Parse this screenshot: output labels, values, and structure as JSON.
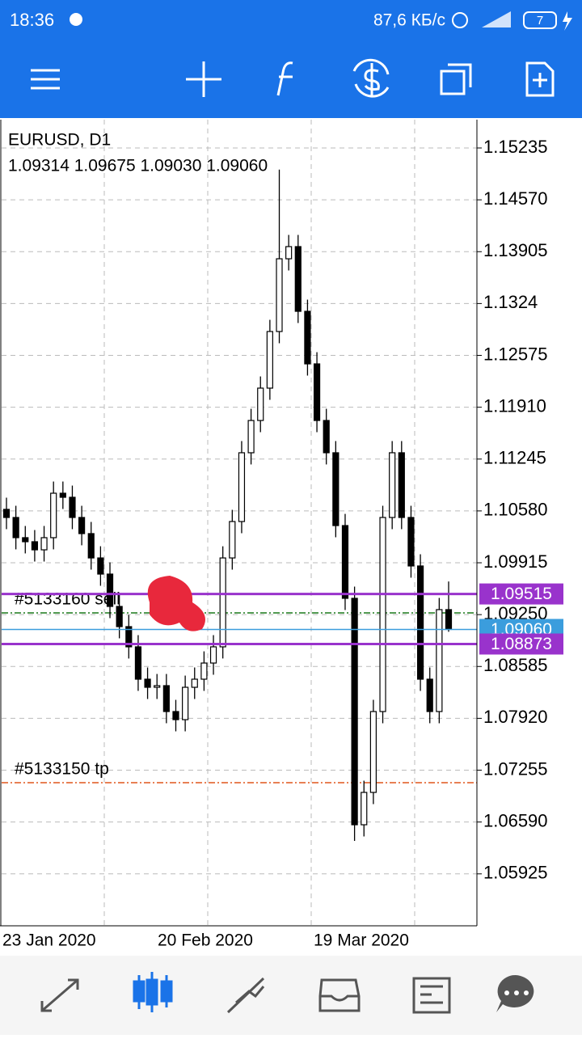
{
  "status_bar": {
    "time": "18:36",
    "speed": "87,6 КБ/с",
    "battery": "7"
  },
  "chart_data": {
    "type": "candlestick",
    "symbol": "EURUSD, D1",
    "ohlc_text": "1.09314 1.09675 1.09030 1.09060",
    "open": [
      1.106,
      1.10496,
      1.10237,
      1.10185,
      1.10081,
      1.10237,
      1.10807,
      1.10755,
      1.10496,
      1.10289,
      1.09977,
      1.0977,
      1.09355,
      1.09096,
      1.08837,
      1.08422,
      1.08318,
      1.08339,
      1.08007,
      1.07903,
      1.08318,
      1.08422,
      1.08629,
      1.08837,
      1.09977,
      1.10444,
      1.11326,
      1.1174,
      1.12155,
      1.12881,
      1.13814,
      1.1397,
      1.1314,
      1.12466,
      1.1174,
      1.11326,
      1.10392,
      1.09459,
      1.06555,
      1.0697,
      1.08007,
      1.10496,
      1.11326,
      1.10496,
      1.09874,
      1.08422,
      1.08007,
      1.09314
    ],
    "high": [
      1.1075,
      1.10646,
      1.10387,
      1.10335,
      1.10387,
      1.10957,
      1.10957,
      1.10905,
      1.10646,
      1.10439,
      1.10127,
      1.0992,
      1.09505,
      1.09246,
      1.08987,
      1.08572,
      1.08489,
      1.08489,
      1.08157,
      1.08468,
      1.08572,
      1.08779,
      1.08987,
      1.10127,
      1.10594,
      1.11476,
      1.1189,
      1.12305,
      1.13031,
      1.14957,
      1.1412,
      1.1412,
      1.1329,
      1.12616,
      1.1189,
      1.11476,
      1.10542,
      1.09609,
      1.0712,
      1.08157,
      1.10646,
      1.11476,
      1.11476,
      1.10646,
      1.10024,
      1.08572,
      1.09464,
      1.09675
    ],
    "low": [
      1.10346,
      1.10087,
      1.10035,
      1.09931,
      1.09931,
      1.10087,
      1.10605,
      1.10346,
      1.10139,
      1.09827,
      1.0962,
      1.09205,
      1.08946,
      1.08687,
      1.08272,
      1.08168,
      1.08168,
      1.07857,
      1.07753,
      1.07753,
      1.08168,
      1.08272,
      1.08479,
      1.08687,
      1.09827,
      1.10294,
      1.11176,
      1.1159,
      1.12005,
      1.12731,
      1.13664,
      1.1299,
      1.12316,
      1.1159,
      1.11176,
      1.10242,
      1.09309,
      1.06348,
      1.06405,
      1.0682,
      1.07857,
      1.10346,
      1.10346,
      1.09724,
      1.08272,
      1.07857,
      1.07857,
      1.0903
    ],
    "close": [
      1.10496,
      1.10237,
      1.10185,
      1.10081,
      1.10237,
      1.10807,
      1.10755,
      1.10496,
      1.10289,
      1.09977,
      1.0977,
      1.09355,
      1.09096,
      1.08837,
      1.08422,
      1.08318,
      1.08339,
      1.08007,
      1.07903,
      1.08318,
      1.08422,
      1.08629,
      1.08837,
      1.09977,
      1.10444,
      1.11326,
      1.1174,
      1.12155,
      1.12881,
      1.13814,
      1.1397,
      1.1314,
      1.12466,
      1.1174,
      1.11326,
      1.10392,
      1.09459,
      1.06555,
      1.0697,
      1.08007,
      1.10496,
      1.11326,
      1.10496,
      1.09874,
      1.08422,
      1.08007,
      1.09314,
      1.0906
    ],
    "ylim": [
      1.05259,
      1.15598
    ],
    "yticks": [
      1.15235,
      {
        "value": 1.1457,
        "label": "1.14570"
      },
      1.13905,
      1.1324,
      1.12575,
      {
        "value": 1.1191,
        "label": "1.11910"
      },
      1.11245,
      {
        "value": 1.1058,
        "label": "1.10580"
      },
      1.09915,
      {
        "value": 1.0925,
        "label": "1.09250"
      },
      1.08585,
      {
        "value": 1.0792,
        "label": "1.07920"
      },
      1.07255,
      {
        "value": 1.0659,
        "label": "1.06590"
      },
      1.05925
    ],
    "x_labels": [
      "23 Jan 2020",
      "20 Feb 2020",
      "19 Mar 2020"
    ],
    "grid": true,
    "levels": [
      {
        "name": "#5133160 sell",
        "value": 1.09272,
        "color": "#1a7a1a"
      },
      {
        "name": "#5133150 tp",
        "value": 1.07094,
        "color": "#e0561b"
      }
    ],
    "price_lines": [
      {
        "value": 1.09515,
        "label": "1.09515",
        "color": "#9933cc"
      },
      {
        "value": 1.0906,
        "label": "1.09060",
        "color": "#3b9ddd"
      },
      {
        "value": 1.08873,
        "label": "1.08873",
        "color": "#9933cc"
      }
    ]
  }
}
